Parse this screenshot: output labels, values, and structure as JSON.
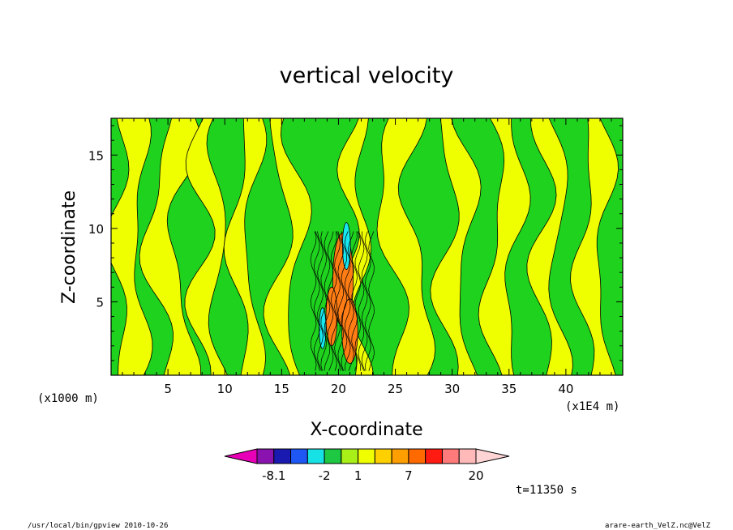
{
  "chart_data": {
    "type": "heatmap",
    "title": "vertical velocity",
    "xlabel": "X-coordinate",
    "ylabel": "Z-coordinate",
    "x_unit_left": "(x1000 m)",
    "x_unit_right": "(x1E4 m)",
    "xlim": [
      0,
      45
    ],
    "ylim": [
      0,
      17.5
    ],
    "x_ticks": [
      "5",
      "10",
      "15",
      "20",
      "25",
      "30",
      "35",
      "40"
    ],
    "x_tick_values": [
      5,
      10,
      15,
      20,
      25,
      30,
      35,
      40
    ],
    "y_ticks": [
      "5",
      "10",
      "15"
    ],
    "y_tick_values": [
      5,
      10,
      15
    ],
    "grid": false,
    "colors": {
      "positive_weak": "#f0ff00",
      "negative_weak": "#1ed21e",
      "cyan": "#17e8f0",
      "orange": "#ff7d14",
      "line": "#000000"
    },
    "colorbar": {
      "colors": [
        "#e800b8",
        "#8a13b0",
        "#1a1ab0",
        "#1f57f5",
        "#16e2e6",
        "#1ec842",
        "#a8f018",
        "#f0ff00",
        "#ffd000",
        "#ff9e00",
        "#ff6a00",
        "#ff1a12",
        "#ff7a7a",
        "#ffb9b9",
        "#ffd4d4"
      ],
      "labels": [
        "-8.1",
        "-2",
        "1",
        "7",
        "20"
      ],
      "label_positions": [
        1,
        4,
        6,
        9,
        13
      ]
    },
    "time_label": "t=11350 s"
  },
  "footer": {
    "left": "/usr/local/bin/gpview  2010-10-26",
    "right": "arare-earth_VelZ.nc@VelZ"
  }
}
